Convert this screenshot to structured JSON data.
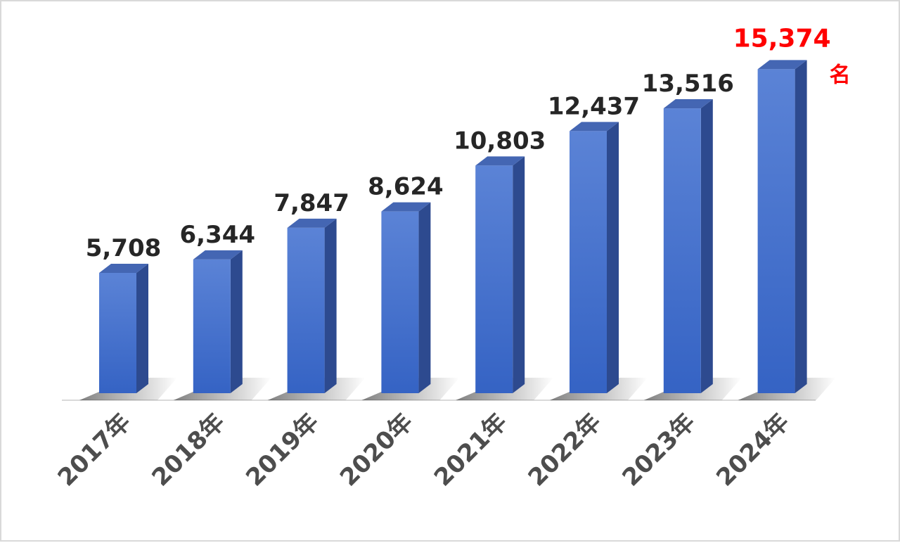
{
  "chart_data": {
    "type": "bar",
    "categories": [
      "2017年",
      "2018年",
      "2019年",
      "2020年",
      "2021年",
      "2022年",
      "2023年",
      "2024年"
    ],
    "values": [
      5708,
      6344,
      7847,
      8624,
      10803,
      12437,
      13516,
      15374
    ],
    "value_labels": [
      "5,708",
      "6,344",
      "7,847",
      "8,624",
      "10,803",
      "12,437",
      "13,516",
      "15,374"
    ],
    "highlight_unit": "名",
    "highlight_index": 7,
    "ylim": [
      0,
      16000
    ],
    "grid": false,
    "legend": "none",
    "style": "3d-column",
    "colors": {
      "bar_front_top": "#5b83d6",
      "bar_front_bottom": "#3563c4",
      "bar_side": "#2d4a8f",
      "bar_top": "#4466b3",
      "highlight_text": "#ff0000",
      "label_text": "#262626",
      "category_text": "#4d4d4d",
      "baseline": "#d9d9d9"
    }
  }
}
